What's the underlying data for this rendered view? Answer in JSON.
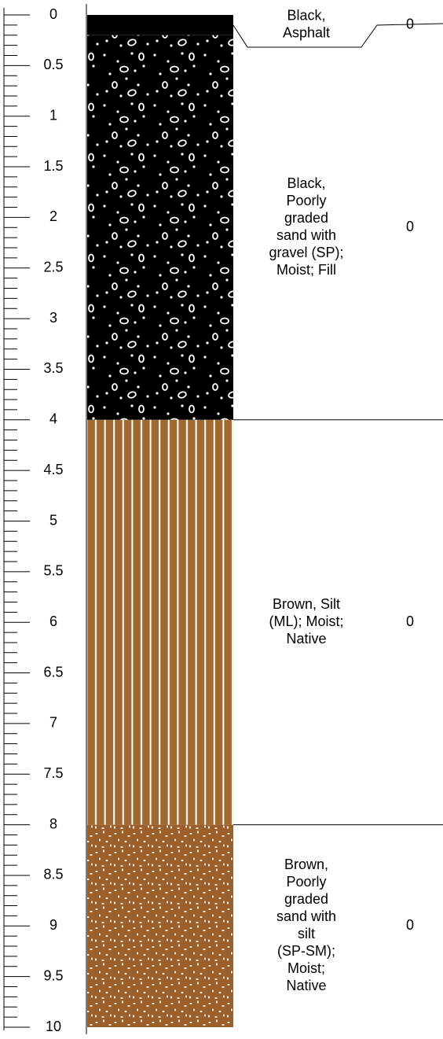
{
  "depth_axis": {
    "lim": [
      0,
      10
    ],
    "ticks": [
      0,
      0.5,
      1,
      1.5,
      2,
      2.5,
      3,
      3.5,
      4,
      4.5,
      5,
      5.5,
      6,
      6.5,
      7,
      7.5,
      8,
      8.5,
      9,
      9.5,
      10
    ]
  },
  "layers": [
    {
      "top": 0,
      "bottom": 0.2,
      "color": "#000000",
      "description_lines": [
        "Black,",
        "Asphalt"
      ],
      "reading": 0
    },
    {
      "top": 0.2,
      "bottom": 4,
      "color": "#000000",
      "description_lines": [
        "Black,",
        "Poorly",
        "graded",
        "sand with",
        "gravel (SP);",
        "Moist; Fill"
      ],
      "reading": 0
    },
    {
      "top": 4,
      "bottom": 8,
      "color": "#a0692f",
      "description_lines": [
        "Brown, Silt",
        "(ML); Moist;",
        "Native"
      ],
      "reading": 0
    },
    {
      "top": 8,
      "bottom": 10,
      "color": "#9a5f2a",
      "description_lines": [
        "Brown,",
        "Poorly",
        "graded",
        "sand with",
        "silt",
        "(SP-SM);",
        "Moist;",
        "Native"
      ],
      "reading": 0
    }
  ]
}
